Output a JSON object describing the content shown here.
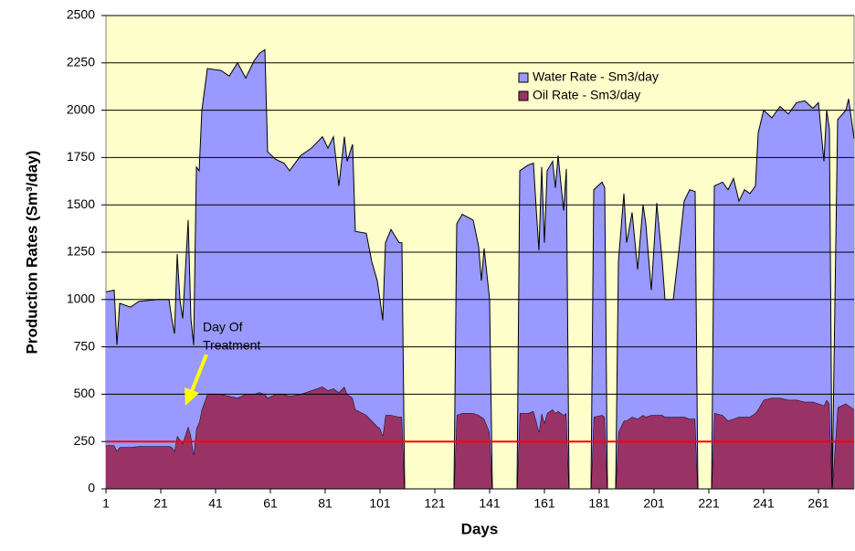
{
  "chart_data": {
    "type": "stacked_area",
    "y_label": "Production Rates (Sm³/day)",
    "x_label": "Days",
    "annotation": [
      "Day Of",
      "Treatment"
    ],
    "x": [
      1,
      4,
      5,
      6,
      10,
      13,
      20,
      24,
      25,
      26,
      27,
      28,
      29,
      31,
      32,
      33,
      34,
      35,
      36,
      38,
      43,
      46,
      49,
      52,
      55,
      57,
      59,
      60,
      63,
      66,
      68,
      72,
      76,
      80,
      82,
      84,
      86,
      88,
      89,
      91,
      92,
      96,
      98,
      100,
      101,
      102,
      103,
      105,
      108,
      109,
      110,
      128,
      129,
      131,
      135,
      137,
      138,
      139,
      141,
      142,
      151,
      152,
      155,
      157,
      158,
      159,
      160,
      161,
      162,
      164,
      165,
      166,
      168,
      169,
      170,
      178,
      179,
      182,
      183,
      184,
      187,
      188,
      190,
      191,
      193,
      195,
      197,
      198,
      200,
      202,
      204,
      205,
      208,
      210,
      212,
      214,
      216,
      217,
      222,
      223,
      226,
      228,
      230,
      232,
      234,
      236,
      238,
      239,
      241,
      244,
      247,
      250,
      253,
      256,
      259,
      261,
      263,
      264,
      265,
      266,
      268,
      271,
      272,
      274
    ],
    "series": [
      {
        "name": "Water Rate - Sm3/day",
        "color": "#9999ff",
        "values": [
          810,
          820,
          560,
          760,
          740,
          765,
          775,
          775,
          680,
          620,
          960,
          740,
          660,
          1090,
          620,
          580,
          1380,
          1330,
          1580,
          1720,
          1710,
          1690,
          1770,
          1670,
          1760,
          1790,
          1820,
          1300,
          1240,
          1220,
          1190,
          1260,
          1280,
          1320,
          1280,
          1330,
          1090,
          1320,
          1230,
          1340,
          940,
          960,
          840,
          770,
          680,
          610,
          910,
          980,
          920,
          920,
          0,
          0,
          1010,
          1050,
          1020,
          890,
          720,
          900,
          700,
          0,
          0,
          1280,
          1310,
          1310,
          1120,
          960,
          1300,
          950,
          1280,
          1310,
          1190,
          1350,
          1080,
          1290,
          0,
          0,
          1200,
          1230,
          1210,
          0,
          0,
          900,
          1200,
          940,
          1080,
          790,
          1110,
          1020,
          660,
          1120,
          810,
          620,
          620,
          870,
          1140,
          1210,
          1200,
          0,
          0,
          1200,
          1230,
          1220,
          1270,
          1140,
          1200,
          1180,
          1200,
          1460,
          1530,
          1480,
          1540,
          1510,
          1570,
          1590,
          1550,
          1590,
          1290,
          1530,
          1450,
          0,
          1520,
          1550,
          1620,
          1430
        ]
      },
      {
        "name": "Oil Rate - Sm3/day",
        "color": "#993366",
        "values": [
          230,
          230,
          200,
          220,
          220,
          225,
          225,
          225,
          220,
          200,
          280,
          260,
          240,
          330,
          280,
          180,
          320,
          350,
          420,
          500,
          500,
          490,
          480,
          500,
          500,
          510,
          500,
          480,
          500,
          500,
          490,
          500,
          520,
          540,
          520,
          530,
          510,
          540,
          500,
          480,
          420,
          390,
          360,
          330,
          320,
          280,
          390,
          390,
          380,
          380,
          0,
          0,
          390,
          400,
          400,
          390,
          380,
          370,
          300,
          0,
          0,
          400,
          400,
          410,
          360,
          300,
          400,
          350,
          400,
          420,
          400,
          410,
          390,
          400,
          0,
          0,
          380,
          390,
          380,
          0,
          0,
          300,
          360,
          360,
          380,
          370,
          390,
          380,
          390,
          390,
          390,
          380,
          380,
          380,
          380,
          370,
          370,
          0,
          0,
          400,
          390,
          360,
          370,
          380,
          380,
          380,
          400,
          420,
          470,
          480,
          480,
          470,
          470,
          460,
          460,
          450,
          440,
          470,
          450,
          0,
          430,
          450,
          440,
          420
        ]
      }
    ],
    "reference_line": {
      "value": 250,
      "color": "#ff0000"
    },
    "xlim": [
      1,
      274
    ],
    "xticks": [
      1,
      21,
      41,
      61,
      81,
      101,
      121,
      141,
      161,
      181,
      201,
      221,
      241,
      261
    ],
    "ylim": [
      0,
      2500
    ],
    "yticks": [
      0,
      250,
      500,
      750,
      1000,
      1250,
      1500,
      1750,
      2000,
      2250,
      2500
    ],
    "grid": true,
    "background": "#ffffcc",
    "legend": "upper right"
  }
}
